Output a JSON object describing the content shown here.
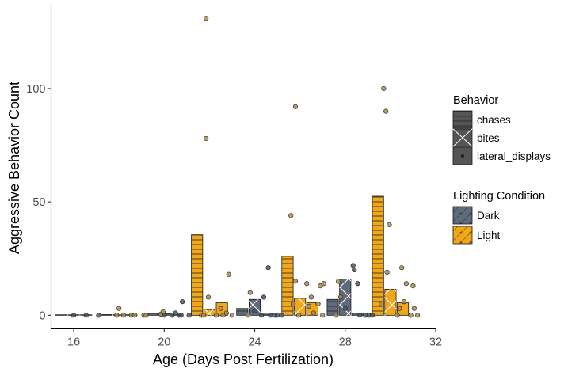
{
  "chart_data": {
    "type": "bar",
    "xlabel": "Age (Days Post Fertilization)",
    "ylabel": "Aggressive Behavior Count",
    "xlim": [
      15,
      32
    ],
    "ylim": [
      -6,
      137
    ],
    "x_ticks": [
      "16",
      "20",
      "24",
      "28",
      "32"
    ],
    "y_ticks": [
      "0",
      "50",
      "100"
    ],
    "x_tick_values": [
      16,
      20,
      24,
      28,
      32
    ],
    "y_tick_values": [
      0,
      50,
      100
    ],
    "grid": false,
    "legend_placement": "right",
    "behavior_legend": {
      "title": "Behavior",
      "entries": [
        {
          "key": "chases",
          "label": "chases",
          "pattern": "stripe"
        },
        {
          "key": "bites",
          "label": "bites",
          "pattern": "crosshatch"
        },
        {
          "key": "lateral_displays",
          "label": "lateral_displays",
          "pattern": "none"
        }
      ]
    },
    "lighting_legend": {
      "title": "Lighting Condition",
      "entries": [
        {
          "key": "Dark",
          "label": "Dark",
          "color": "#5e6b7c"
        },
        {
          "key": "Light",
          "label": "Light",
          "color": "#f0a818"
        }
      ]
    },
    "colors": {
      "Dark": "#5e6b7c",
      "Light": "#f0a818"
    },
    "bars": [
      {
        "age": 16,
        "lighting": "Dark",
        "behavior": "chases",
        "value": 0
      },
      {
        "age": 16,
        "lighting": "Dark",
        "behavior": "bites",
        "value": 0
      },
      {
        "age": 16,
        "lighting": "Dark",
        "behavior": "lateral_displays",
        "value": 0
      },
      {
        "age": 18,
        "lighting": "Light",
        "behavior": "chases",
        "value": 0.3
      },
      {
        "age": 18,
        "lighting": "Light",
        "behavior": "bites",
        "value": 0.2
      },
      {
        "age": 18,
        "lighting": "Light",
        "behavior": "lateral_displays",
        "value": 0
      },
      {
        "age": 20,
        "lighting": "Dark",
        "behavior": "chases",
        "value": 0.6
      },
      {
        "age": 20,
        "lighting": "Dark",
        "behavior": "bites",
        "value": 0.7
      },
      {
        "age": 20,
        "lighting": "Dark",
        "behavior": "lateral_displays",
        "value": 0.3
      },
      {
        "age": 22,
        "lighting": "Light",
        "behavior": "chases",
        "value": 35.5
      },
      {
        "age": 22,
        "lighting": "Light",
        "behavior": "bites",
        "value": 2.5
      },
      {
        "age": 22,
        "lighting": "Light",
        "behavior": "lateral_displays",
        "value": 5.5
      },
      {
        "age": 24,
        "lighting": "Dark",
        "behavior": "chases",
        "value": 3
      },
      {
        "age": 24,
        "lighting": "Dark",
        "behavior": "bites",
        "value": 7
      },
      {
        "age": 24,
        "lighting": "Dark",
        "behavior": "lateral_displays",
        "value": 0.5
      },
      {
        "age": 26,
        "lighting": "Light",
        "behavior": "chases",
        "value": 26
      },
      {
        "age": 26,
        "lighting": "Light",
        "behavior": "bites",
        "value": 7.5
      },
      {
        "age": 26,
        "lighting": "Light",
        "behavior": "lateral_displays",
        "value": 5.5
      },
      {
        "age": 28,
        "lighting": "Dark",
        "behavior": "chases",
        "value": 7
      },
      {
        "age": 28,
        "lighting": "Dark",
        "behavior": "bites",
        "value": 16
      },
      {
        "age": 28,
        "lighting": "Dark",
        "behavior": "lateral_displays",
        "value": 1
      },
      {
        "age": 30,
        "lighting": "Light",
        "behavior": "chases",
        "value": 52.5
      },
      {
        "age": 30,
        "lighting": "Light",
        "behavior": "bites",
        "value": 11.5
      },
      {
        "age": 30,
        "lighting": "Light",
        "behavior": "lateral_displays",
        "value": 5.5
      }
    ],
    "points": [
      {
        "x": 16,
        "y": 0
      },
      {
        "x": 16.55,
        "y": 0
      },
      {
        "x": 17.1,
        "y": 0
      },
      {
        "x": 17.9,
        "y": 0
      },
      {
        "x": 18.0,
        "y": 3
      },
      {
        "x": 18.2,
        "y": 0
      },
      {
        "x": 18.55,
        "y": 0
      },
      {
        "x": 18.7,
        "y": 0
      },
      {
        "x": 19.1,
        "y": 0
      },
      {
        "x": 19.2,
        "y": 0
      },
      {
        "x": 19.85,
        "y": 0.5
      },
      {
        "x": 19.95,
        "y": 1.5
      },
      {
        "x": 20.0,
        "y": 0
      },
      {
        "x": 20.35,
        "y": 0
      },
      {
        "x": 20.5,
        "y": 1
      },
      {
        "x": 20.65,
        "y": 0
      },
      {
        "x": 20.75,
        "y": 0
      },
      {
        "x": 20.8,
        "y": 6
      },
      {
        "x": 21.1,
        "y": 0
      },
      {
        "x": 21.65,
        "y": 0
      },
      {
        "x": 21.75,
        "y": 0
      },
      {
        "x": 21.85,
        "y": 78
      },
      {
        "x": 21.85,
        "y": 131
      },
      {
        "x": 21.95,
        "y": 8
      },
      {
        "x": 22.3,
        "y": 0
      },
      {
        "x": 22.5,
        "y": 3
      },
      {
        "x": 22.6,
        "y": 0
      },
      {
        "x": 22.75,
        "y": 1
      },
      {
        "x": 22.85,
        "y": 18
      },
      {
        "x": 23.0,
        "y": 0
      },
      {
        "x": 23.7,
        "y": 0
      },
      {
        "x": 23.8,
        "y": 10
      },
      {
        "x": 24.0,
        "y": 2
      },
      {
        "x": 24.3,
        "y": 0
      },
      {
        "x": 24.4,
        "y": 8
      },
      {
        "x": 24.6,
        "y": 21
      },
      {
        "x": 24.7,
        "y": 0
      },
      {
        "x": 24.9,
        "y": 0
      },
      {
        "x": 25.0,
        "y": 0
      },
      {
        "x": 25.2,
        "y": 0
      },
      {
        "x": 25.6,
        "y": 44
      },
      {
        "x": 25.7,
        "y": 5
      },
      {
        "x": 25.8,
        "y": 15
      },
      {
        "x": 25.8,
        "y": 92
      },
      {
        "x": 25.95,
        "y": 0
      },
      {
        "x": 26.3,
        "y": 14
      },
      {
        "x": 26.4,
        "y": 4
      },
      {
        "x": 26.5,
        "y": 8
      },
      {
        "x": 26.6,
        "y": 1
      },
      {
        "x": 26.8,
        "y": 5
      },
      {
        "x": 26.9,
        "y": 13
      },
      {
        "x": 27.05,
        "y": 14
      },
      {
        "x": 27.0,
        "y": 0
      },
      {
        "x": 27.6,
        "y": 0
      },
      {
        "x": 27.7,
        "y": 15
      },
      {
        "x": 27.8,
        "y": 8
      },
      {
        "x": 28.0,
        "y": 3
      },
      {
        "x": 28.35,
        "y": 22
      },
      {
        "x": 28.4,
        "y": 20
      },
      {
        "x": 28.55,
        "y": 14
      },
      {
        "x": 28.65,
        "y": 0
      },
      {
        "x": 28.9,
        "y": 0
      },
      {
        "x": 29.05,
        "y": 0
      },
      {
        "x": 29.2,
        "y": 0
      },
      {
        "x": 29.6,
        "y": 5
      },
      {
        "x": 29.7,
        "y": 100
      },
      {
        "x": 29.8,
        "y": 90
      },
      {
        "x": 29.85,
        "y": 19
      },
      {
        "x": 29.95,
        "y": 40
      },
      {
        "x": 30.3,
        "y": 0
      },
      {
        "x": 30.4,
        "y": 3
      },
      {
        "x": 30.5,
        "y": 21
      },
      {
        "x": 30.6,
        "y": 6
      },
      {
        "x": 30.7,
        "y": 14
      },
      {
        "x": 30.9,
        "y": 0
      },
      {
        "x": 31.0,
        "y": 13
      },
      {
        "x": 31.05,
        "y": 3
      },
      {
        "x": 31.2,
        "y": 0
      }
    ]
  }
}
